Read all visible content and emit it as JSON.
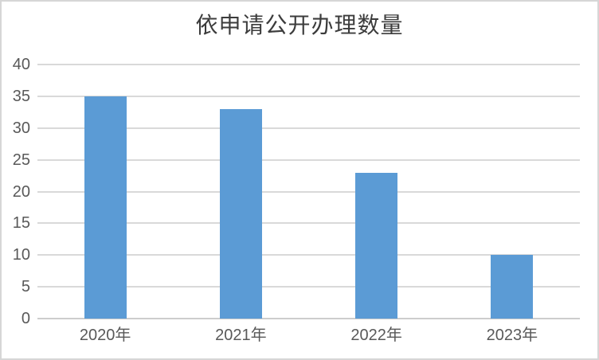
{
  "chart_data": {
    "type": "bar",
    "title": "依申请公开办理数量",
    "categories": [
      "2020年",
      "2021年",
      "2022年",
      "2023年"
    ],
    "values": [
      35,
      33,
      23,
      10
    ],
    "yticks": [
      0,
      5,
      10,
      15,
      20,
      25,
      30,
      35,
      40
    ],
    "ylim": [
      0,
      40
    ],
    "xlabel": "",
    "ylabel": "",
    "grid": true,
    "legend": false,
    "bar_color": "#5b9bd5",
    "gridline_color": "#d9d9d9",
    "axis_line_color": "#cdcdcd",
    "tick_label_color": "#595959",
    "title_color": "#3c3c3c",
    "background_color": "#ffffff"
  }
}
